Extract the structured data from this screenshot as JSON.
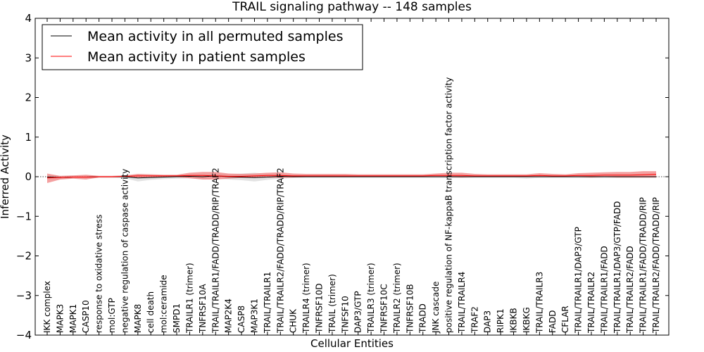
{
  "chart_data": {
    "type": "line",
    "title": "TRAIL signaling pathway -- 148 samples",
    "xlabel": "Cellular Entities",
    "ylabel": "Inferred Activity",
    "ylim": [
      -4,
      4
    ],
    "yticks": [
      -4,
      -3,
      -2,
      -1,
      0,
      1,
      2,
      3,
      4
    ],
    "ytick_labels": [
      "−4",
      "−3",
      "−2",
      "−1",
      "0",
      "1",
      "2",
      "3",
      "4"
    ],
    "legend_position": "top-left",
    "grid": false,
    "categories": [
      "IKK complex",
      "MAPK3",
      "MAPK1",
      "CASP10",
      "response to oxidative stress",
      "mol:GTP",
      "negative regulation of caspase activity",
      "MAPK8",
      "cell death",
      "mol:ceramide",
      "SMPD1",
      "TRAILR1 (trimer)",
      "TNFRSF10A",
      "TRAIL/TRAILR1/FADD/TRADD/RIP/TRAF2",
      "MAP2K4",
      "CASP8",
      "MAP3K1",
      "TRAIL/TRAILR1",
      "TRAIL/TRAILR2/FADD/TRADD/RIP/TRAF2",
      "CHUK",
      "TRAILR4 (trimer)",
      "TNFRSF10D",
      "TRAIL (trimer)",
      "TNFSF10",
      "DAP3/GTP",
      "TRAILR3 (trimer)",
      "TNFRSF10C",
      "TRAILR2 (trimer)",
      "TNFRSF10B",
      "TRADD",
      "JNK cascade",
      "positive regulation of NF-kappaB transcription factor activity",
      "TRAIL/TRAILR4",
      "TRAF2",
      "DAP3",
      "RIPK1",
      "IKBKB",
      "IKBKG",
      "TRAIL/TRAILR3",
      "FADD",
      "CFLAR",
      "TRAIL/TRAILR1/DAP3/GTP",
      "TRAIL/TRAILR2",
      "TRAIL/TRAILR1/FADD",
      "TRAIL/TRAILR1/DAP3/GTP/FADD",
      "TRAIL/TRAILR2/FADD",
      "TRAIL/TRAILR1/FADD/TRADD/RIP",
      "TRAIL/TRAILR2/FADD/TRADD/RIP"
    ],
    "series": [
      {
        "name": "Mean activity in all permuted samples",
        "color": "#000000",
        "values": [
          -0.01,
          -0.02,
          -0.01,
          -0.01,
          0,
          0,
          0,
          -0.03,
          -0.02,
          -0.01,
          0,
          0.01,
          0,
          0.02,
          0,
          -0.01,
          -0.02,
          -0.01,
          0.01,
          0,
          0,
          0,
          0,
          0,
          0,
          0,
          0,
          0,
          0,
          0,
          0,
          0,
          0,
          0,
          0,
          0,
          0,
          0,
          0,
          0,
          0,
          0,
          0,
          0,
          0,
          0,
          0,
          0
        ],
        "band_upper": [
          0.04,
          0.02,
          0.03,
          0.03,
          0.02,
          0.02,
          0.03,
          0.06,
          0.05,
          0.04,
          0.04,
          0.05,
          0.06,
          0.08,
          0.06,
          0.08,
          0.1,
          0.07,
          0.06,
          0.04,
          0.03,
          0.03,
          0.03,
          0.02,
          0.02,
          0.02,
          0.02,
          0.02,
          0.02,
          0.02,
          0.02,
          0.02,
          0.02,
          0.02,
          0.02,
          0.02,
          0.02,
          0.02,
          0.02,
          0.02,
          0.02,
          0.02,
          0.02,
          0.02,
          0.02,
          0.02,
          0.02,
          0.02
        ],
        "band_lower": [
          -0.06,
          -0.06,
          -0.05,
          -0.05,
          -0.03,
          -0.03,
          -0.04,
          -0.12,
          -0.08,
          -0.06,
          -0.05,
          -0.04,
          -0.06,
          -0.05,
          -0.07,
          -0.09,
          -0.12,
          -0.08,
          -0.05,
          -0.03,
          -0.03,
          -0.03,
          -0.03,
          -0.03,
          -0.03,
          -0.03,
          -0.03,
          -0.03,
          -0.03,
          -0.03,
          -0.03,
          -0.03,
          -0.03,
          -0.03,
          -0.03,
          -0.03,
          -0.03,
          -0.05,
          -0.03,
          -0.03,
          -0.03,
          -0.03,
          -0.03,
          -0.03,
          -0.03,
          -0.03,
          -0.03,
          -0.03
        ]
      },
      {
        "name": "Mean activity in patient samples",
        "color": "#ff0000",
        "band_color": "#f08080",
        "values": [
          -0.03,
          -0.02,
          -0.01,
          -0.01,
          0,
          0,
          0.01,
          0.02,
          0.02,
          0.02,
          0.02,
          0.03,
          0.03,
          0.02,
          0.01,
          0.01,
          0.02,
          0.03,
          0.03,
          0.02,
          0.02,
          0.02,
          0.02,
          0.02,
          0.02,
          0.02,
          0.02,
          0.02,
          0.02,
          0.02,
          0.03,
          0.03,
          0.03,
          0.02,
          0.02,
          0.02,
          0.02,
          0.02,
          0.03,
          0.02,
          0.02,
          0.03,
          0.03,
          0.04,
          0.04,
          0.04,
          0.05,
          0.06
        ],
        "band_upper": [
          0.08,
          0.02,
          0.03,
          0.05,
          0.02,
          0.02,
          0.03,
          0.07,
          0.06,
          0.05,
          0.05,
          0.1,
          0.12,
          0.12,
          0.08,
          0.07,
          0.08,
          0.1,
          0.11,
          0.08,
          0.07,
          0.07,
          0.07,
          0.07,
          0.06,
          0.06,
          0.06,
          0.06,
          0.06,
          0.06,
          0.08,
          0.1,
          0.1,
          0.07,
          0.06,
          0.06,
          0.06,
          0.06,
          0.09,
          0.07,
          0.06,
          0.09,
          0.1,
          0.11,
          0.12,
          0.12,
          0.14,
          0.14
        ],
        "band_lower": [
          -0.16,
          -0.07,
          -0.05,
          -0.07,
          -0.02,
          -0.02,
          -0.01,
          -0.02,
          -0.01,
          -0.01,
          -0.01,
          -0.04,
          -0.07,
          -0.07,
          -0.05,
          -0.03,
          -0.03,
          -0.02,
          -0.03,
          -0.02,
          -0.01,
          -0.01,
          -0.01,
          -0.01,
          -0.01,
          -0.01,
          -0.01,
          -0.01,
          -0.01,
          -0.01,
          -0.01,
          -0.01,
          -0.02,
          -0.01,
          -0.01,
          -0.01,
          -0.01,
          -0.01,
          -0.01,
          -0.01,
          -0.01,
          -0.01,
          -0.02,
          -0.01,
          -0.02,
          -0.02,
          -0.02,
          -0.02
        ]
      }
    ]
  }
}
